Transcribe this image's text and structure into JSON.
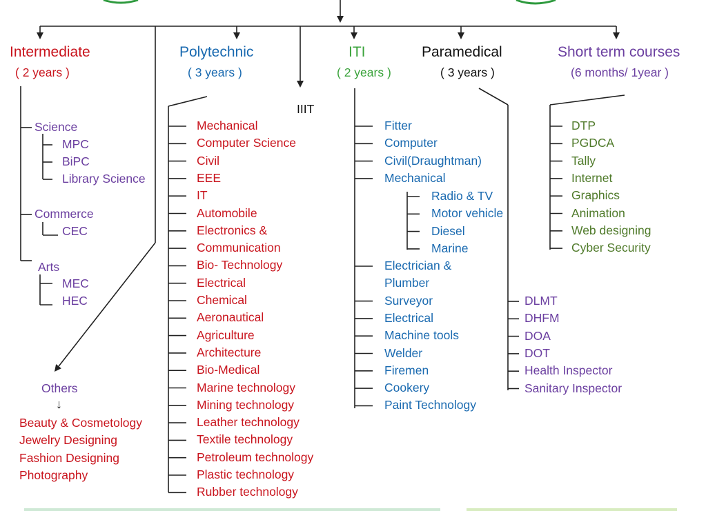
{
  "headers": {
    "intermediate": {
      "title": "Intermediate",
      "duration": "( 2 years )"
    },
    "polytechnic": {
      "title": "Polytechnic",
      "duration": "( 3 years )"
    },
    "iiit": {
      "title": "IIIT"
    },
    "iti": {
      "title": "ITI",
      "duration": "( 2 years )"
    },
    "paramedical": {
      "title": "Paramedical",
      "duration": "( 3 years )"
    },
    "short_term": {
      "title": "Short term courses",
      "duration": "(6 months/ 1year )"
    }
  },
  "intermediate": {
    "science": "Science",
    "science_items": [
      "MPC",
      "BiPC",
      "Library Science"
    ],
    "commerce": "Commerce",
    "commerce_items": [
      "CEC"
    ],
    "arts": "Arts",
    "arts_items": [
      "MEC",
      "HEC"
    ]
  },
  "others": {
    "title": "Others",
    "arrow": "↓",
    "items": [
      "Beauty & Cosmetology",
      "Jewelry Designing",
      "Fashion Designing",
      "Photography"
    ]
  },
  "polytechnic_items": [
    "Mechanical",
    "Computer Science",
    "Civil",
    "EEE",
    "IT",
    "Automobile",
    "Electronics &",
    "Communication",
    "Bio- Technology",
    "Electrical",
    "Chemical",
    "Aeronautical",
    "Agriculture",
    "Architecture",
    "Bio-Medical",
    "Marine technology",
    "Mining technology",
    "Leather technology",
    "Textile technology",
    "Petroleum technology",
    "Plastic technology",
    "Rubber technology"
  ],
  "iti_items_top": [
    "Fitter",
    "Computer",
    "Civil(Draughtman)",
    "Mechanical"
  ],
  "iti_mechanical_sub": [
    "Radio & TV",
    "Motor vehicle",
    "Diesel",
    "Marine"
  ],
  "iti_items_bottom": [
    "Electrician &",
    "Plumber",
    "Surveyor",
    "Electrical",
    "Machine tools",
    "Welder",
    "Firemen",
    "Cookery",
    "Paint Technology"
  ],
  "paramedical_items": [
    "DLMT",
    "DHFM",
    "DOA",
    "DOT",
    "Health Inspector",
    "Sanitary Inspector"
  ],
  "short_term_items": [
    "DTP",
    "PGDCA",
    "Tally",
    "Internet",
    "Graphics",
    "Animation",
    "Web designing",
    "Cyber Security"
  ],
  "colors": {
    "red": "#c9151e",
    "blue": "#1a6ab0",
    "green": "#3aa33b",
    "purple": "#6b3fa0",
    "olive": "#4f7a2a",
    "line": "#222222"
  }
}
